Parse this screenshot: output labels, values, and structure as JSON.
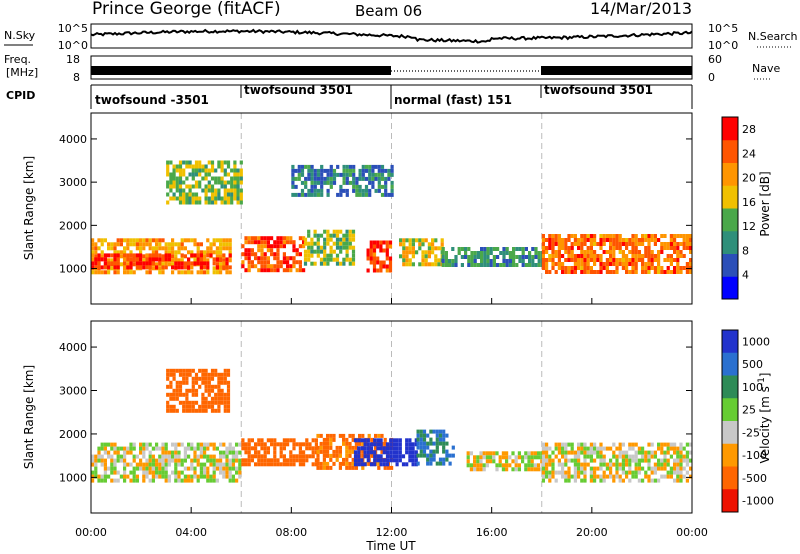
{
  "header": {
    "station": "Prince George (fitACF)",
    "beam": "Beam 06",
    "date": "14/Mar/2013"
  },
  "summary_panels": {
    "nsky": {
      "label": "N.Sky",
      "ticks": [
        "10^5",
        "10^0"
      ],
      "right_label": "N.Search",
      "right_ticks": [
        "10^5",
        "10^0"
      ]
    },
    "freq": {
      "label_line1": "Freq.",
      "label_line2": "[MHz]",
      "ticks": [
        "18",
        "8"
      ],
      "right_label": "Nave",
      "right_ticks": [
        "60",
        "0"
      ]
    },
    "cpid": {
      "label": "CPID",
      "segments": [
        {
          "label": "twofsound -3501",
          "start_hour": 0,
          "end_hour": 6
        },
        {
          "label": "twofsound 3501",
          "start_hour": 6,
          "end_hour": 12
        },
        {
          "label": "normal (fast) 151",
          "start_hour": 12,
          "end_hour": 18
        },
        {
          "label": "twofsound 3501",
          "start_hour": 18,
          "end_hour": 24
        }
      ]
    }
  },
  "chart_data": [
    {
      "type": "heatmap",
      "name": "power",
      "ylabel": "Slant Range [km]",
      "x_range_hours": [
        0,
        24
      ],
      "ylim_km": [
        180,
        4600
      ],
      "y_ticks": [
        "1000",
        "2000",
        "3000",
        "4000"
      ],
      "colorbar": {
        "label": "Power [dB]",
        "ticks": [
          "4",
          "8",
          "12",
          "16",
          "20",
          "24",
          "28"
        ],
        "range": [
          0,
          30
        ]
      },
      "features": [
        {
          "hours": [
            0,
            5.5
          ],
          "km": [
            900,
            1700
          ],
          "level_db": 20
        },
        {
          "hours": [
            0,
            5.5
          ],
          "km": [
            1050,
            1350
          ],
          "level_db": 28
        },
        {
          "hours": [
            6,
            8.5
          ],
          "km": [
            950,
            1750
          ],
          "level_db": 26
        },
        {
          "hours": [
            8.5,
            10.5
          ],
          "km": [
            1100,
            1900
          ],
          "level_db": 14
        },
        {
          "hours": [
            11,
            12
          ],
          "km": [
            1000,
            1650
          ],
          "level_db": 28
        },
        {
          "hours": [
            12.3,
            14
          ],
          "km": [
            1100,
            1700
          ],
          "level_db": 18
        },
        {
          "hours": [
            14,
            18
          ],
          "km": [
            1100,
            1500
          ],
          "level_db": 10
        },
        {
          "hours": [
            18,
            24
          ],
          "km": [
            950,
            1800
          ],
          "level_db": 24
        },
        {
          "hours": [
            3,
            6
          ],
          "km": [
            2500,
            3500
          ],
          "level_db": 14
        },
        {
          "hours": [
            8,
            12
          ],
          "km": [
            2700,
            3400
          ],
          "level_db": 8
        }
      ]
    },
    {
      "type": "heatmap",
      "name": "velocity",
      "ylabel": "Slant Range [km]",
      "xlabel": "Time UT",
      "x_range_hours": [
        0,
        24
      ],
      "x_ticks": [
        "00:00",
        "04:00",
        "08:00",
        "12:00",
        "16:00",
        "20:00",
        "00:00"
      ],
      "ylim_km": [
        180,
        4600
      ],
      "y_ticks": [
        "1000",
        "2000",
        "3000",
        "4000"
      ],
      "colorbar": {
        "label": "Velocity [m s^-1]",
        "ticks": [
          "1000",
          "500",
          "100",
          "25",
          "-25",
          "-100",
          "-500",
          "-1000"
        ]
      },
      "features": [
        {
          "hours": [
            0,
            6
          ],
          "km": [
            900,
            1800
          ],
          "velocity": 0
        },
        {
          "hours": [
            6,
            9
          ],
          "km": [
            1300,
            1900
          ],
          "velocity": -300
        },
        {
          "hours": [
            9,
            12
          ],
          "km": [
            1200,
            2000
          ],
          "velocity": -150
        },
        {
          "hours": [
            10.5,
            13
          ],
          "km": [
            1300,
            1900
          ],
          "velocity": 800
        },
        {
          "hours": [
            13,
            14.5
          ],
          "km": [
            1300,
            2100
          ],
          "velocity": 300
        },
        {
          "hours": [
            15,
            18
          ],
          "km": [
            1200,
            1600
          ],
          "velocity": 0
        },
        {
          "hours": [
            18,
            24
          ],
          "km": [
            950,
            1800
          ],
          "velocity": 0
        },
        {
          "hours": [
            3,
            5.5
          ],
          "km": [
            2500,
            3500
          ],
          "velocity": -400
        }
      ]
    }
  ]
}
